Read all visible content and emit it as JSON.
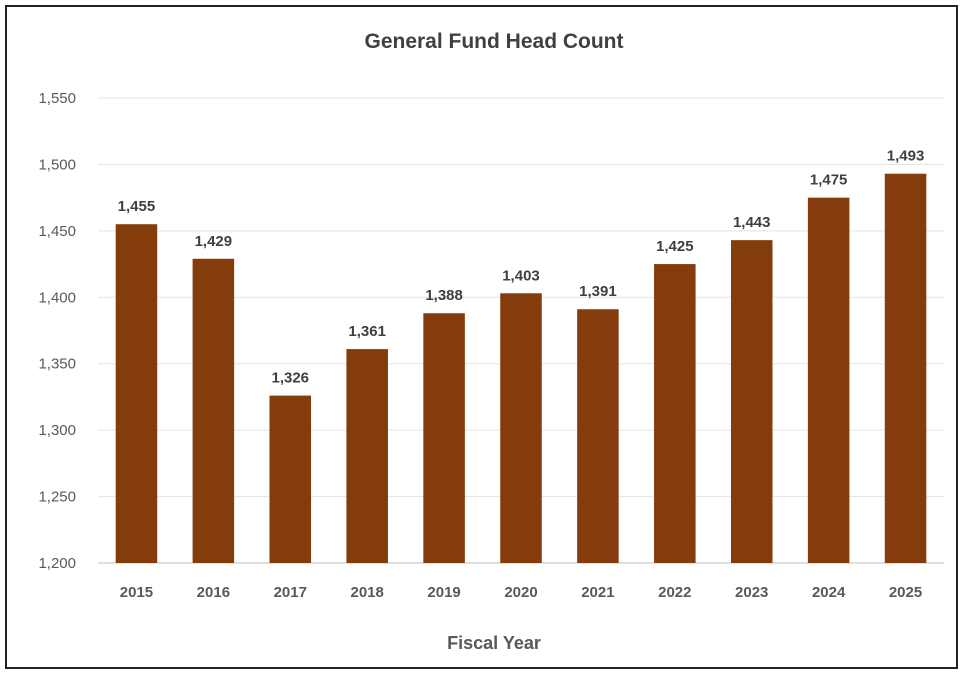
{
  "chart_data": {
    "type": "bar",
    "title": "General Fund Head Count",
    "xlabel": "Fiscal Year",
    "ylabel": "",
    "categories": [
      "2015",
      "2016",
      "2017",
      "2018",
      "2019",
      "2020",
      "2021",
      "2022",
      "2023",
      "2024",
      "2025"
    ],
    "values": [
      1455,
      1429,
      1326,
      1361,
      1388,
      1403,
      1391,
      1425,
      1443,
      1475,
      1493
    ],
    "value_labels": [
      "1,455",
      "1,429",
      "1,326",
      "1,361",
      "1,388",
      "1,403",
      "1,391",
      "1,425",
      "1,443",
      "1,475",
      "1,493"
    ],
    "ylim": [
      1200,
      1550
    ],
    "yticks": [
      1200,
      1250,
      1300,
      1350,
      1400,
      1450,
      1500,
      1550
    ],
    "ytick_labels": [
      "1,200",
      "1,250",
      "1,300",
      "1,350",
      "1,400",
      "1,450",
      "1,500",
      "1,550"
    ],
    "grid": true,
    "legend": "none",
    "bar_color": "#843C0C"
  }
}
